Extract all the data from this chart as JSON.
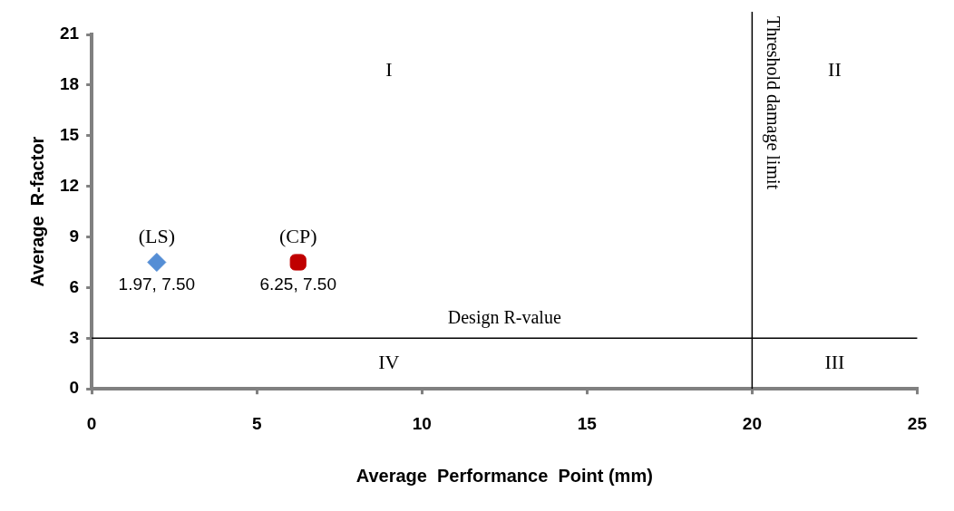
{
  "chart_data": {
    "type": "scatter",
    "xlabel": "Average  Performance  Point (mm)",
    "ylabel": "Average  R-factor",
    "xlim": [
      0,
      25
    ],
    "xticks": [
      0,
      5,
      10,
      15,
      20,
      25
    ],
    "ylim": [
      0,
      21
    ],
    "yticks": [
      0,
      3,
      6,
      9,
      12,
      15,
      18,
      21
    ],
    "grid": false,
    "legend": false,
    "series": [
      {
        "name": "(LS)",
        "color": "#558ed5",
        "marker": "diamond",
        "x": [
          1.97
        ],
        "values": [
          7.5
        ],
        "value_labels": [
          "1.97, 7.50"
        ]
      },
      {
        "name": "(CP)",
        "color": "#c00000",
        "marker": "square",
        "x": [
          6.25
        ],
        "values": [
          7.5
        ],
        "value_labels": [
          "6.25, 7.50"
        ]
      }
    ],
    "ref_lines": [
      {
        "axis": "y",
        "value": 3,
        "label": "Design R-value",
        "color": "#000000"
      },
      {
        "axis": "x",
        "value": 20,
        "label": "Threshold damage limit",
        "color": "#000000"
      }
    ],
    "annotations": [
      "I",
      "II",
      "III",
      "IV"
    ]
  }
}
